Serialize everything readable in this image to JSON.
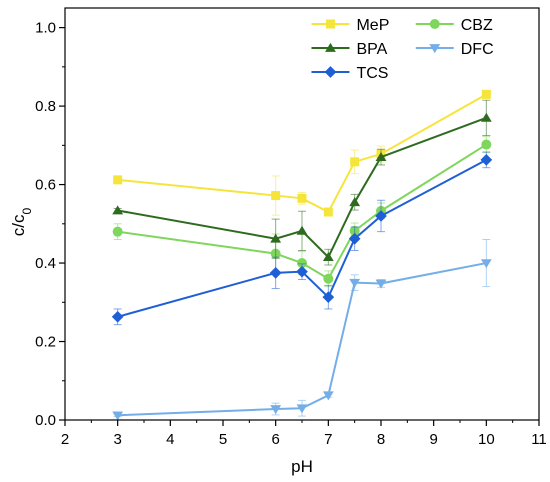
{
  "chart_data": {
    "type": "line",
    "xlabel": "pH",
    "ylabel": {
      "main": "c/c",
      "sub": "0"
    },
    "xlim": [
      2,
      11
    ],
    "ylim": [
      0.0,
      1.05
    ],
    "x_ticks": [
      "2",
      "3",
      "4",
      "5",
      "6",
      "7",
      "8",
      "9",
      "10",
      "11"
    ],
    "y_ticks": [
      "0.0",
      "0.2",
      "0.4",
      "0.6",
      "0.8",
      "1.0"
    ],
    "grid": false,
    "legend_position": "top-right",
    "series": [
      {
        "name": "MeP",
        "color": "#f5e53a",
        "marker": "square",
        "x": [
          3,
          6,
          6.5,
          7,
          7.5,
          8,
          10
        ],
        "y": [
          0.612,
          0.572,
          0.565,
          0.53,
          0.658,
          0.678,
          0.83
        ],
        "err": [
          0.005,
          0.05,
          0.015,
          0.01,
          0.03,
          0.02,
          0.01
        ]
      },
      {
        "name": "CBZ",
        "color": "#7fd65c",
        "marker": "circle",
        "x": [
          3,
          6,
          6.5,
          7,
          7.5,
          8,
          10
        ],
        "y": [
          0.48,
          0.424,
          0.4,
          0.36,
          0.482,
          0.533,
          0.702
        ],
        "err": [
          0.02,
          0.05,
          0.03,
          0.02,
          0.02,
          0.02,
          0.02
        ]
      },
      {
        "name": "BPA",
        "color": "#2e6b1f",
        "marker": "triangle-up",
        "x": [
          3,
          6,
          6.5,
          7,
          7.5,
          8,
          10
        ],
        "y": [
          0.534,
          0.462,
          0.482,
          0.415,
          0.555,
          0.67,
          0.77
        ],
        "err": [
          0.005,
          0.05,
          0.05,
          0.02,
          0.02,
          0.02,
          0.045
        ]
      },
      {
        "name": "DFC",
        "color": "#74aee8",
        "marker": "triangle-down",
        "x": [
          3,
          6,
          6.5,
          7,
          7.5,
          8,
          10
        ],
        "y": [
          0.012,
          0.028,
          0.03,
          0.063,
          0.35,
          0.348,
          0.4
        ],
        "err": [
          0.003,
          0.015,
          0.02,
          0.005,
          0.02,
          0.01,
          0.06
        ]
      },
      {
        "name": "TCS",
        "color": "#1f5fd6",
        "marker": "diamond",
        "x": [
          3,
          6,
          6.5,
          7,
          7.5,
          8,
          10
        ],
        "y": [
          0.263,
          0.375,
          0.378,
          0.313,
          0.462,
          0.52,
          0.663
        ],
        "err": [
          0.02,
          0.04,
          0.02,
          0.03,
          0.03,
          0.04,
          0.02
        ]
      }
    ],
    "legend_order": [
      "MeP",
      "CBZ",
      "BPA",
      "DFC",
      "TCS"
    ]
  }
}
